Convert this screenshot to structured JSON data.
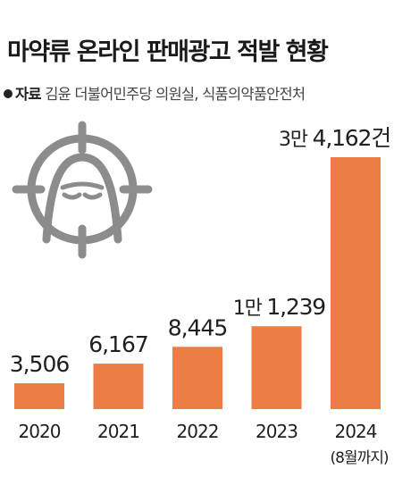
{
  "header": {
    "title": "마약류 온라인 판매광고 적발 현황",
    "source_label": "자료",
    "source_text": "김윤 더불어민주당 의원실, 식품의약품안전처"
  },
  "icon": {
    "name": "hooded-figure-crosshair-icon"
  },
  "colors": {
    "bar": "#EC7D45",
    "icon": "#8C8C8C"
  },
  "chart_data": {
    "type": "bar",
    "categories": [
      "2020",
      "2021",
      "2022",
      "2023",
      "2024"
    ],
    "category_notes": [
      "",
      "",
      "",
      "",
      "(8월까지)"
    ],
    "values": [
      3506,
      6167,
      8445,
      11239,
      34162
    ],
    "value_labels": [
      {
        "prefix": "",
        "main": "3,506"
      },
      {
        "prefix": "",
        "main": "6,167"
      },
      {
        "prefix": "",
        "main": "8,445"
      },
      {
        "prefix": "1만",
        "main": "1,239"
      },
      {
        "prefix": "3만",
        "main": "4,162건"
      }
    ],
    "title": "마약류 온라인 판매광고 적발 현황",
    "xlabel": "",
    "ylabel": "",
    "grid": false
  }
}
